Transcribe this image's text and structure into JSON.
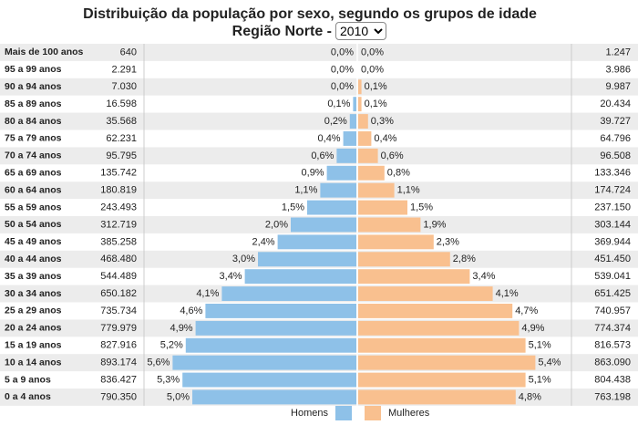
{
  "chart_data": {
    "type": "pyramid",
    "title": "Distribuição da população por sexo, segundo os grupos de idade",
    "subtitle": "Região Norte -",
    "year_options": [
      "2010"
    ],
    "categories": [
      "Mais de 100 anos",
      "95 a 99 anos",
      "90 a 94 anos",
      "85 a 89 anos",
      "80 a 84 anos",
      "75 a 79 anos",
      "70 a 74 anos",
      "65 a 69 anos",
      "60 a 64 anos",
      "55 a 59 anos",
      "50 a 54 anos",
      "45 a 49 anos",
      "40 a 44 anos",
      "35 a 39 anos",
      "30 a 34 anos",
      "25 a 29 anos",
      "20 a 24 anos",
      "15 a 19 anos",
      "10 a 14 anos",
      "5 a 9 anos",
      "0 a 4 anos"
    ],
    "series": [
      {
        "name": "Homens",
        "color": "#8ec1e8",
        "side": "left",
        "values": [
          0.0,
          0.0,
          0.0,
          0.1,
          0.2,
          0.4,
          0.6,
          0.9,
          1.1,
          1.5,
          2.0,
          2.4,
          3.0,
          3.4,
          4.1,
          4.6,
          4.9,
          5.2,
          5.6,
          5.3,
          5.0
        ],
        "value_labels": [
          "0,0%",
          "0,0%",
          "0,0%",
          "0,1%",
          "0,2%",
          "0,4%",
          "0,6%",
          "0,9%",
          "1,1%",
          "1,5%",
          "2,0%",
          "2,4%",
          "3,0%",
          "3,4%",
          "4,1%",
          "4,6%",
          "4,9%",
          "5,2%",
          "5,6%",
          "5,3%",
          "5,0%"
        ],
        "counts": [
          640,
          2291,
          7030,
          16598,
          35568,
          62231,
          95795,
          135742,
          180819,
          243493,
          312719,
          385258,
          468480,
          544489,
          650182,
          735734,
          779979,
          827916,
          893174,
          836427,
          790350
        ],
        "count_labels": [
          "640",
          "2.291",
          "7.030",
          "16.598",
          "35.568",
          "62.231",
          "95.795",
          "135.742",
          "180.819",
          "243.493",
          "312.719",
          "385.258",
          "468.480",
          "544.489",
          "650.182",
          "735.734",
          "779.979",
          "827.916",
          "893.174",
          "836.427",
          "790.350"
        ]
      },
      {
        "name": "Mulheres",
        "color": "#f9c08f",
        "side": "right",
        "values": [
          0.0,
          0.0,
          0.1,
          0.1,
          0.3,
          0.4,
          0.6,
          0.8,
          1.1,
          1.5,
          1.9,
          2.3,
          2.8,
          3.4,
          4.1,
          4.7,
          4.9,
          5.1,
          5.4,
          5.1,
          4.8
        ],
        "value_labels": [
          "0,0%",
          "0,0%",
          "0,1%",
          "0,1%",
          "0,3%",
          "0,4%",
          "0,6%",
          "0,8%",
          "1,1%",
          "1,5%",
          "1,9%",
          "2,3%",
          "2,8%",
          "3,4%",
          "4,1%",
          "4,7%",
          "4,9%",
          "5,1%",
          "5,4%",
          "5,1%",
          "4,8%"
        ],
        "counts": [
          1247,
          3986,
          9987,
          20434,
          39727,
          64796,
          96508,
          133346,
          174724,
          237150,
          303144,
          369944,
          451450,
          539041,
          651425,
          740957,
          774374,
          816573,
          863090,
          804438,
          763198
        ],
        "count_labels": [
          "1.247",
          "3.986",
          "9.987",
          "20.434",
          "39.727",
          "64.796",
          "96.508",
          "133.346",
          "174.724",
          "237.150",
          "303.144",
          "369.944",
          "451.450",
          "539.041",
          "651.425",
          "740.957",
          "774.374",
          "816.573",
          "863.090",
          "804.438",
          "763.198"
        ]
      }
    ]
  }
}
